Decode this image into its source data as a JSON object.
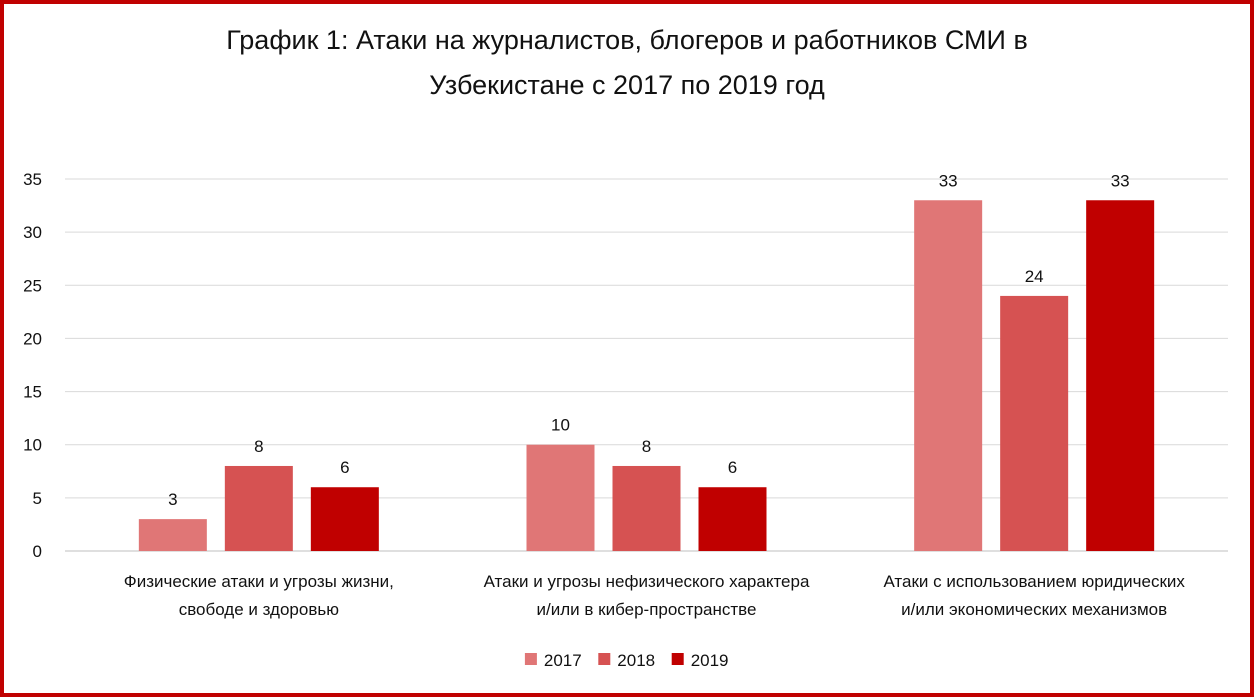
{
  "chart_data": {
    "type": "bar",
    "title_lines": [
      "График 1: Атаки на журналистов, блогеров и работников СМИ в",
      "Узбекистане с 2017 по 2019 год"
    ],
    "xlabel": "",
    "ylabel": "",
    "ylim": [
      0,
      35
    ],
    "yticks": [
      0,
      5,
      10,
      15,
      20,
      25,
      30,
      35
    ],
    "grid": true,
    "legend_position": "bottom",
    "categories": [
      [
        "Физические атаки и угрозы жизни,",
        "свободе и здоровью"
      ],
      [
        "Атаки и угрозы нефизического характера",
        "и/или в кибер-пространстве"
      ],
      [
        "Атаки с использованием юридических",
        "и/или экономических механизмов"
      ]
    ],
    "series": [
      {
        "name": "2017",
        "values": [
          3,
          10,
          33
        ],
        "color": "#e07676"
      },
      {
        "name": "2018",
        "values": [
          8,
          8,
          24
        ],
        "color": "#d65252"
      },
      {
        "name": "2019",
        "values": [
          6,
          6,
          33
        ],
        "color": "#c00000"
      }
    ],
    "data_labels": true
  }
}
